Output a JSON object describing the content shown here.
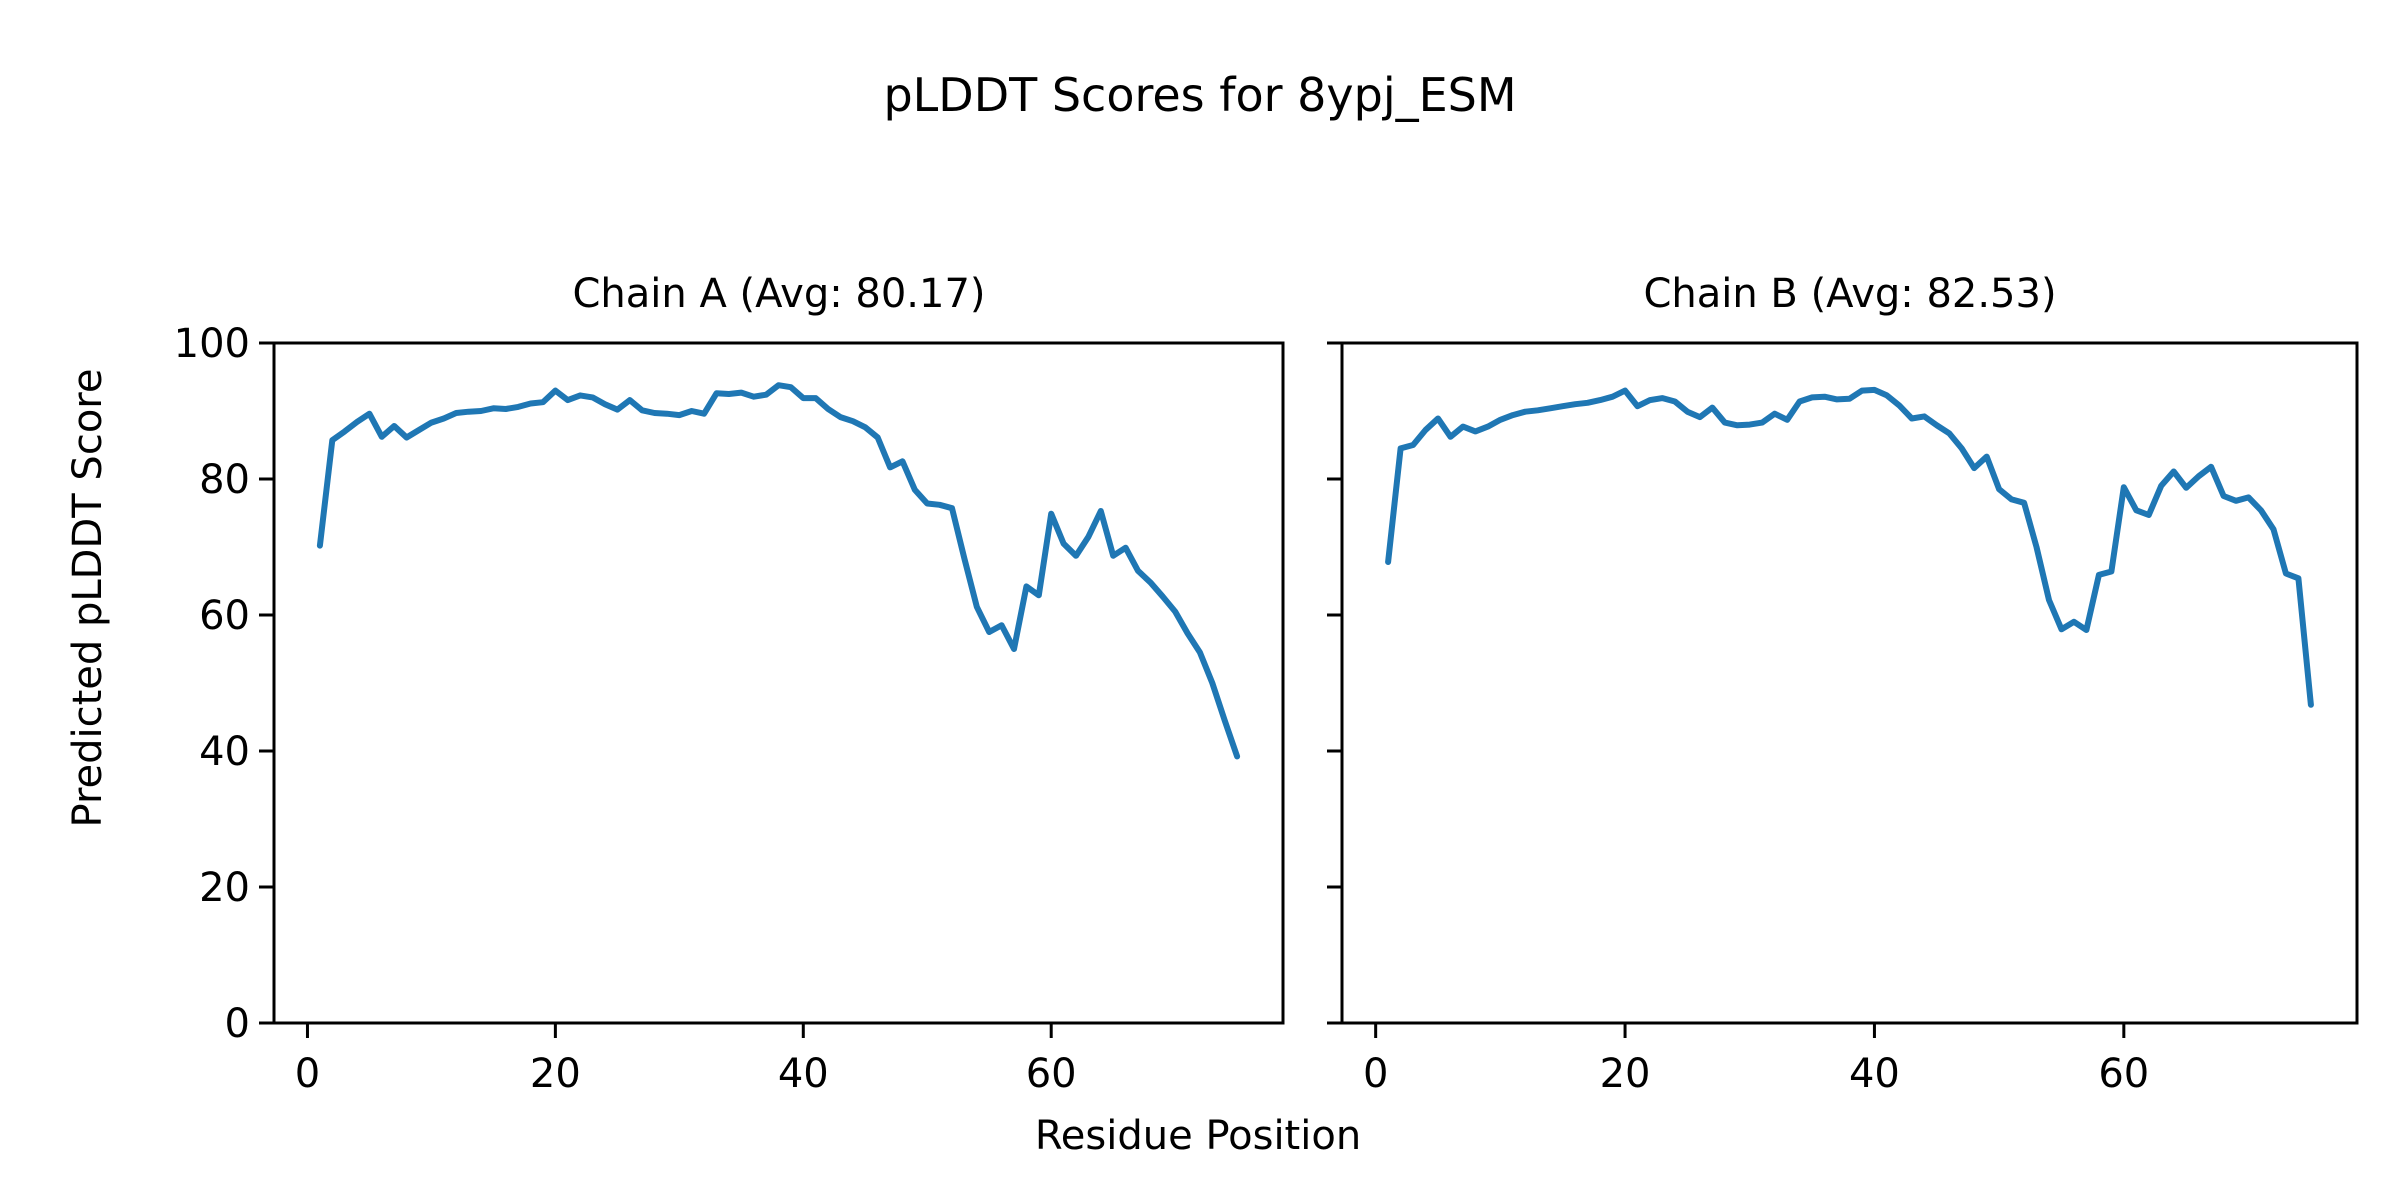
{
  "figure": {
    "title": "pLDDT Scores for 8ypj_ESM",
    "xlabel": "Residue Position",
    "ylabel": "Predicted pLDDT Score",
    "background": "#ffffff",
    "text_color": "#000000"
  },
  "chart_data": [
    {
      "type": "line",
      "title": "Chain A (Avg: 80.17)",
      "series_name": "Chain A",
      "avg": 80.17,
      "color": "#1f77b4",
      "x_start": 1,
      "values": [
        70.2,
        85.7,
        87.0,
        88.4,
        89.6,
        86.2,
        87.8,
        86.1,
        87.2,
        88.3,
        88.9,
        89.7,
        89.9,
        90.0,
        90.4,
        90.3,
        90.6,
        91.1,
        91.3,
        93.0,
        91.6,
        92.3,
        92.0,
        91.0,
        90.2,
        91.6,
        90.1,
        89.7,
        89.6,
        89.4,
        90.0,
        89.6,
        92.6,
        92.5,
        92.7,
        92.1,
        92.4,
        93.8,
        93.5,
        91.9,
        91.9,
        90.3,
        89.1,
        88.5,
        87.6,
        86.1,
        81.7,
        82.6,
        78.4,
        76.4,
        76.2,
        75.7,
        68.3,
        61.2,
        57.5,
        58.5,
        55.0,
        64.2,
        62.9,
        74.9,
        70.5,
        68.7,
        71.5,
        75.3,
        68.7,
        69.9,
        66.5,
        64.8,
        62.7,
        60.5,
        57.3,
        54.5,
        50.0,
        44.5,
        39.2
      ],
      "xticks": [
        0,
        20,
        40,
        60
      ],
      "yticks": [
        0,
        20,
        40,
        60,
        80,
        100
      ],
      "xlim": [
        -2.7,
        78.7
      ],
      "ylim": [
        0,
        100
      ],
      "grid": false,
      "show_ytick_labels": true
    },
    {
      "type": "line",
      "title": "Chain B (Avg: 82.53)",
      "series_name": "Chain B",
      "avg": 82.53,
      "color": "#1f77b4",
      "x_start": 1,
      "values": [
        67.8,
        84.5,
        85.0,
        87.2,
        88.9,
        86.2,
        87.7,
        87.0,
        87.7,
        88.7,
        89.4,
        89.9,
        90.1,
        90.4,
        90.7,
        91.0,
        91.2,
        91.6,
        92.1,
        93.0,
        90.7,
        91.6,
        91.9,
        91.4,
        89.9,
        89.1,
        90.5,
        88.3,
        87.9,
        88.0,
        88.3,
        89.6,
        88.7,
        91.4,
        92.0,
        92.1,
        91.7,
        91.8,
        93.0,
        93.1,
        92.3,
        90.8,
        88.9,
        89.2,
        87.9,
        86.7,
        84.5,
        81.6,
        83.3,
        78.5,
        77.0,
        76.5,
        70.0,
        62.2,
        57.9,
        59.0,
        57.8,
        65.9,
        66.4,
        78.8,
        75.4,
        74.7,
        79.0,
        81.1,
        78.7,
        80.4,
        81.8,
        77.5,
        76.8,
        77.3,
        75.4,
        72.6,
        66.1,
        65.4,
        46.8
      ],
      "xticks": [
        0,
        20,
        40,
        60
      ],
      "yticks": [
        0,
        20,
        40,
        60,
        80,
        100
      ],
      "xlim": [
        -2.7,
        78.7
      ],
      "ylim": [
        0,
        100
      ],
      "grid": false,
      "show_ytick_labels": false
    }
  ]
}
